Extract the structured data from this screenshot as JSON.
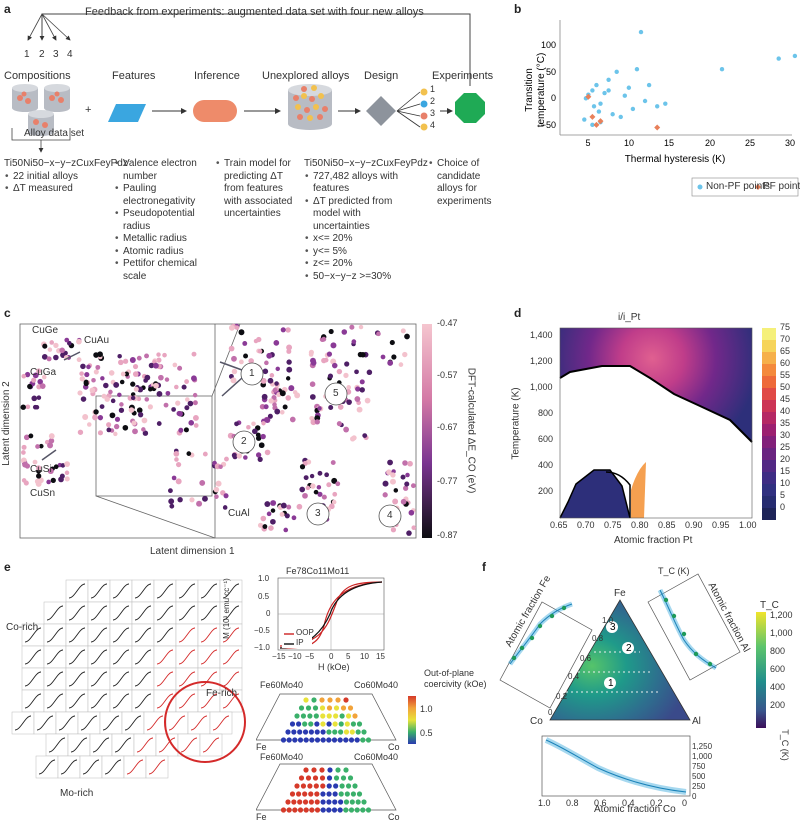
{
  "panel_a": {
    "label": "a",
    "feedback_text": "Feedback from experiments: augmented data set with four new alloys",
    "feedback_numbers": [
      "1",
      "2",
      "3",
      "4"
    ],
    "stages": [
      "Compositions",
      "Features",
      "Inference",
      "Unexplored alloys",
      "Design",
      "Experiments"
    ],
    "plus": "+",
    "data_set_label": "Alloy data set",
    "design_numbers": [
      "1",
      "2",
      "3",
      "4"
    ],
    "col1_title": "Ti50Ni50−x−y−zCuxFeyPdz",
    "col1_items": [
      "22 initial alloys",
      "ΔT measured"
    ],
    "col2_items": [
      "Valence electron number",
      "Pauling electronegativity",
      "Pseudopotential radius",
      "Metallic radius",
      "Atomic radius",
      "Pettifor chemical scale"
    ],
    "col3_items": [
      "Train model for predicting ΔT from features with associated uncertainties"
    ],
    "col4_title": "Ti50Ni50−x−y−zCuxFeyPdz",
    "col4_items": [
      "727,482 alloys with features",
      "ΔT predicted from model with uncertainties",
      "x<= 20%",
      "y<= 5%",
      "z<= 20%",
      "50−x−y−z >=30%"
    ],
    "col5_items": [
      "Choice of candidate alloys for experiments"
    ]
  },
  "panel_b": {
    "label": "b",
    "legend_nonpf": "Non-PF points",
    "legend_pf": "PF points"
  },
  "panel_c": {
    "label": "c",
    "xlabel": "Latent dimension 1",
    "ylabel": "Latent dimension 2",
    "cbar_label": "DFT-calculated ΔE_CO (eV)",
    "cbar_ticks": [
      "-0.47",
      "-0.57",
      "-0.67",
      "-0.77",
      "-0.87"
    ],
    "alloys": [
      "CuGe",
      "CuAu",
      "CuGa",
      "CuSi",
      "CuSn",
      "CuAl"
    ],
    "circles": [
      "1",
      "2",
      "3",
      "4",
      "5"
    ]
  },
  "panel_d": {
    "label": "d",
    "title": "i/i_Pt",
    "xlabel": "Atomic fraction Pt",
    "ylabel": "Temperature (K)",
    "xticks": [
      "0.65",
      "0.70",
      "0.75",
      "0.80",
      "0.85",
      "0.90",
      "0.95",
      "1.00"
    ],
    "yticks": [
      "200",
      "400",
      "600",
      "800",
      "1,000",
      "1,200",
      "1,400"
    ],
    "cbar_ticks": [
      "75",
      "70",
      "65",
      "60",
      "55",
      "50",
      "45",
      "40",
      "35",
      "30",
      "25",
      "20",
      "15",
      "10",
      "5",
      "0"
    ]
  },
  "panel_e": {
    "label": "e",
    "co_rich": "Co-rich",
    "fe_rich": "Fe-rich",
    "mo_rich": "Mo-rich",
    "inset_title": "Fe78Co11Mo11",
    "inset_ylabel": "M (10³ emu cc⁻¹)",
    "inset_xlabel": "H (kOe)",
    "inset_xticks": [
      "−15",
      "−10",
      "−5",
      "0",
      "5",
      "10",
      "15"
    ],
    "inset_yticks": [
      "1.0",
      "0.5",
      "0",
      "−0.5",
      "−1.0"
    ],
    "legend_oop": "OOP",
    "legend_ip": "IP",
    "tern_top_left": "Fe60Mo40",
    "tern_top_right": "Co60Mo40",
    "tern_bottom_left": "Fe",
    "tern_bottom_right": "Co",
    "cbar_title": "Out-of-plane coercivity (kOe)",
    "cbar_ticks": [
      "1.0",
      "0.5"
    ]
  },
  "panel_f": {
    "label": "f",
    "axis_fe": "Atomic fraction Fe",
    "axis_al": "Atomic fraction Al",
    "axis_co": "Atomic fraction Co",
    "tc_label": "T_C (K)",
    "cbar_title": "T_C",
    "cbar_ticks": [
      "1,200",
      "1,000",
      "800",
      "600",
      "400",
      "200"
    ],
    "corners": [
      "Fe",
      "Al",
      "Co"
    ],
    "circles": [
      "1",
      "2",
      "3"
    ],
    "tern_ticks": [
      "1.0",
      "0.8",
      "0.6",
      "0.4",
      "0.2",
      "0"
    ],
    "bottom_ticks": [
      "1.0",
      "0.8",
      "0.6",
      "0.4",
      "0.2",
      "0"
    ],
    "tc_ticks": [
      "1,250",
      "1,000",
      "750",
      "500",
      "250",
      "0"
    ]
  }
}
